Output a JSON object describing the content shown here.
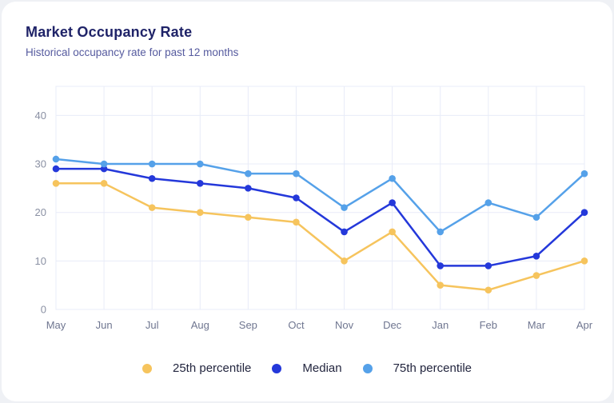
{
  "card": {
    "title": "Market Occupancy Rate",
    "subtitle": "Historical occupancy rate for past 12 months"
  },
  "chart_data": {
    "type": "line",
    "title": "Market Occupancy Rate",
    "categories": [
      "May",
      "Jun",
      "Jul",
      "Aug",
      "Sep",
      "Oct",
      "Nov",
      "Dec",
      "Jan",
      "Feb",
      "Mar",
      "Apr"
    ],
    "series": [
      {
        "name": "25th percentile",
        "color": "#F6C45D",
        "values": [
          26,
          26,
          21,
          20,
          19,
          18,
          10,
          16,
          5,
          4,
          7,
          10
        ]
      },
      {
        "name": "Median",
        "color": "#2438DA",
        "values": [
          29,
          29,
          27,
          26,
          25,
          23,
          16,
          22,
          9,
          9,
          11,
          20
        ]
      },
      {
        "name": "75th percentile",
        "color": "#55A1E9",
        "values": [
          31,
          30,
          30,
          30,
          28,
          28,
          21,
          27,
          16,
          22,
          19,
          28
        ]
      }
    ],
    "yticks": [
      0,
      10,
      20,
      30,
      40
    ],
    "ylim": [
      0,
      46
    ],
    "grid": true,
    "legend_position": "bottom"
  },
  "style": {
    "grid_color": "#E8ECF8",
    "y_tick_color": "#8A90A3",
    "x_tick_color": "#6F7690",
    "legend_text_color": "#23263F",
    "title_color": "#1F2368",
    "subtitle_color": "#565B9F"
  }
}
